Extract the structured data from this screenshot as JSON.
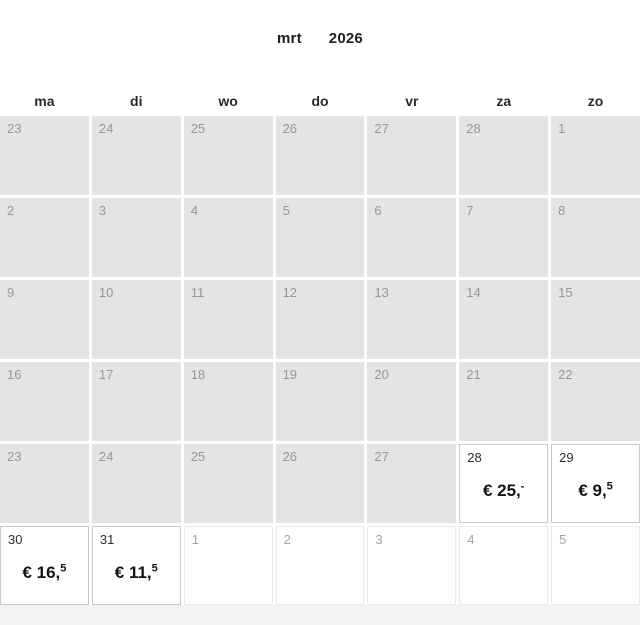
{
  "header": {
    "month": "mrt",
    "year": "2026"
  },
  "weekday_labels": [
    "ma",
    "di",
    "wo",
    "do",
    "vr",
    "za",
    "zo"
  ],
  "weeks": [
    [
      {
        "day": "23",
        "state": "disabled"
      },
      {
        "day": "24",
        "state": "disabled"
      },
      {
        "day": "25",
        "state": "disabled"
      },
      {
        "day": "26",
        "state": "disabled"
      },
      {
        "day": "27",
        "state": "disabled"
      },
      {
        "day": "28",
        "state": "disabled"
      },
      {
        "day": "1",
        "state": "disabled"
      }
    ],
    [
      {
        "day": "2",
        "state": "disabled"
      },
      {
        "day": "3",
        "state": "disabled"
      },
      {
        "day": "4",
        "state": "disabled"
      },
      {
        "day": "5",
        "state": "disabled"
      },
      {
        "day": "6",
        "state": "disabled"
      },
      {
        "day": "7",
        "state": "disabled"
      },
      {
        "day": "8",
        "state": "disabled"
      }
    ],
    [
      {
        "day": "9",
        "state": "disabled"
      },
      {
        "day": "10",
        "state": "disabled"
      },
      {
        "day": "11",
        "state": "disabled"
      },
      {
        "day": "12",
        "state": "disabled"
      },
      {
        "day": "13",
        "state": "disabled"
      },
      {
        "day": "14",
        "state": "disabled"
      },
      {
        "day": "15",
        "state": "disabled"
      }
    ],
    [
      {
        "day": "16",
        "state": "disabled"
      },
      {
        "day": "17",
        "state": "disabled"
      },
      {
        "day": "18",
        "state": "disabled"
      },
      {
        "day": "19",
        "state": "disabled"
      },
      {
        "day": "20",
        "state": "disabled"
      },
      {
        "day": "21",
        "state": "disabled"
      },
      {
        "day": "22",
        "state": "disabled"
      }
    ],
    [
      {
        "day": "23",
        "state": "disabled"
      },
      {
        "day": "24",
        "state": "disabled"
      },
      {
        "day": "25",
        "state": "disabled"
      },
      {
        "day": "26",
        "state": "disabled"
      },
      {
        "day": "27",
        "state": "disabled"
      },
      {
        "day": "28",
        "state": "available",
        "price": {
          "main": "€ 25,",
          "sup": "-"
        }
      },
      {
        "day": "29",
        "state": "available",
        "price": {
          "main": "€ 9,",
          "sup": "5"
        }
      }
    ],
    [
      {
        "day": "30",
        "state": "available",
        "price": {
          "main": "€ 16,",
          "sup": "5"
        }
      },
      {
        "day": "31",
        "state": "available",
        "price": {
          "main": "€ 11,",
          "sup": "5"
        }
      },
      {
        "day": "1",
        "state": "adjacent"
      },
      {
        "day": "2",
        "state": "adjacent"
      },
      {
        "day": "3",
        "state": "adjacent"
      },
      {
        "day": "4",
        "state": "adjacent"
      },
      {
        "day": "5",
        "state": "adjacent"
      }
    ]
  ],
  "colors": {
    "disabled_cell_bg": "#e4e4e4",
    "available_cell_bg": "#ffffff",
    "available_cell_border": "#c9c9c9",
    "adjacent_cell_border": "#e9e9e9",
    "disabled_day_text": "#979797",
    "available_day_text": "#2e2e2e",
    "price_text": "#141414",
    "page_strip_bg": "#f3f3f2"
  }
}
